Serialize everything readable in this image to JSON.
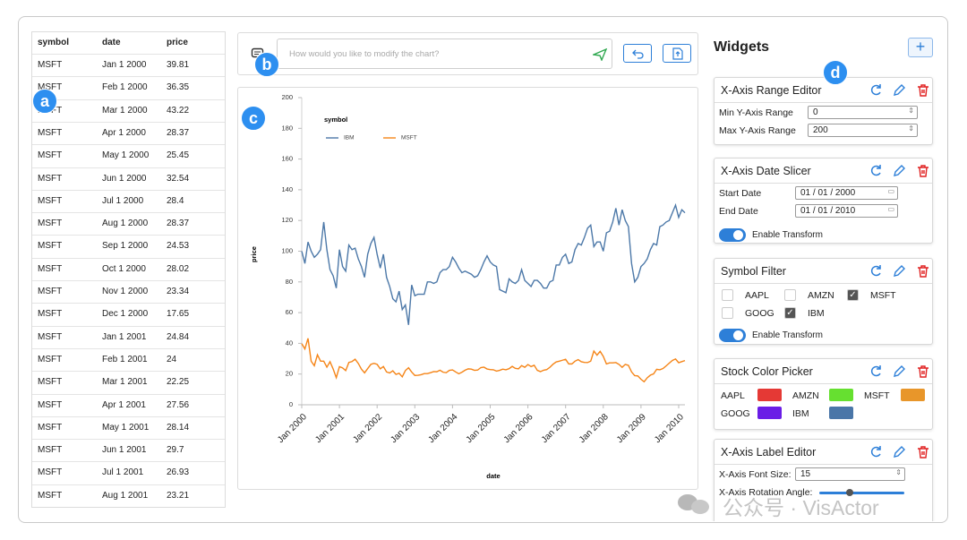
{
  "table": {
    "headers": [
      "symbol",
      "date",
      "price"
    ],
    "rows": [
      [
        "MSFT",
        "Jan 1 2000",
        "39.81"
      ],
      [
        "MSFT",
        "Feb 1 2000",
        "36.35"
      ],
      [
        "MSFT",
        "Mar 1 2000",
        "43.22"
      ],
      [
        "MSFT",
        "Apr 1 2000",
        "28.37"
      ],
      [
        "MSFT",
        "May 1 2000",
        "25.45"
      ],
      [
        "MSFT",
        "Jun 1 2000",
        "32.54"
      ],
      [
        "MSFT",
        "Jul 1 2000",
        "28.4"
      ],
      [
        "MSFT",
        "Aug 1 2000",
        "28.37"
      ],
      [
        "MSFT",
        "Sep 1 2000",
        "24.53"
      ],
      [
        "MSFT",
        "Oct 1 2000",
        "28.02"
      ],
      [
        "MSFT",
        "Nov 1 2000",
        "23.34"
      ],
      [
        "MSFT",
        "Dec 1 2000",
        "17.65"
      ],
      [
        "MSFT",
        "Jan 1 2001",
        "24.84"
      ],
      [
        "MSFT",
        "Feb 1 2001",
        "24"
      ],
      [
        "MSFT",
        "Mar 1 2001",
        "22.25"
      ],
      [
        "MSFT",
        "Apr 1 2001",
        "27.56"
      ],
      [
        "MSFT",
        "May 1 2001",
        "28.14"
      ],
      [
        "MSFT",
        "Jun 1 2001",
        "29.7"
      ],
      [
        "MSFT",
        "Jul 1 2001",
        "26.93"
      ],
      [
        "MSFT",
        "Aug 1 2001",
        "23.21"
      ]
    ]
  },
  "prompt": {
    "placeholder": "How would you like to modify the chart?"
  },
  "badges": [
    "a",
    "b",
    "c",
    "d"
  ],
  "chart_data": {
    "type": "line",
    "x_label": "date",
    "y_label": "price",
    "legend_title": "symbol",
    "grid": false,
    "x": [
      "2000-01",
      "2000-02",
      "2000-03",
      "2000-04",
      "2000-05",
      "2000-06",
      "2000-07",
      "2000-08",
      "2000-09",
      "2000-10",
      "2000-11",
      "2000-12",
      "2001-01",
      "2001-02",
      "2001-03",
      "2001-04",
      "2001-05",
      "2001-06",
      "2001-07",
      "2001-08",
      "2001-09",
      "2001-10",
      "2001-11",
      "2001-12",
      "2002-01",
      "2002-02",
      "2002-03",
      "2002-04",
      "2002-05",
      "2002-06",
      "2002-07",
      "2002-08",
      "2002-09",
      "2002-10",
      "2002-11",
      "2002-12",
      "2003-01",
      "2003-02",
      "2003-03",
      "2003-04",
      "2003-05",
      "2003-06",
      "2003-07",
      "2003-08",
      "2003-09",
      "2003-10",
      "2003-11",
      "2003-12",
      "2004-01",
      "2004-02",
      "2004-03",
      "2004-04",
      "2004-05",
      "2004-06",
      "2004-07",
      "2004-08",
      "2004-09",
      "2004-10",
      "2004-11",
      "2004-12",
      "2005-01",
      "2005-02",
      "2005-03",
      "2005-04",
      "2005-05",
      "2005-06",
      "2005-07",
      "2005-08",
      "2005-09",
      "2005-10",
      "2005-11",
      "2005-12",
      "2006-01",
      "2006-02",
      "2006-03",
      "2006-04",
      "2006-05",
      "2006-06",
      "2006-07",
      "2006-08",
      "2006-09",
      "2006-10",
      "2006-11",
      "2006-12",
      "2007-01",
      "2007-02",
      "2007-03",
      "2007-04",
      "2007-05",
      "2007-06",
      "2007-07",
      "2007-08",
      "2007-09",
      "2007-10",
      "2007-11",
      "2007-12",
      "2008-01",
      "2008-02",
      "2008-03",
      "2008-04",
      "2008-05",
      "2008-06",
      "2008-07",
      "2008-08",
      "2008-09",
      "2008-10",
      "2008-11",
      "2008-12",
      "2009-01",
      "2009-02",
      "2009-03",
      "2009-04",
      "2009-05",
      "2009-06",
      "2009-07",
      "2009-08",
      "2009-09",
      "2009-10",
      "2009-11",
      "2009-12",
      "2010-01",
      "2010-02",
      "2010-03"
    ],
    "xlim": [
      "2000-01",
      "2010-03"
    ],
    "xticks": [
      {
        "value": "2000-01",
        "label": "Jan 2000"
      },
      {
        "value": "2001-01",
        "label": "Jan 2001"
      },
      {
        "value": "2002-01",
        "label": "Jan 2002"
      },
      {
        "value": "2003-01",
        "label": "Jan 2003"
      },
      {
        "value": "2004-01",
        "label": "Jan 2004"
      },
      {
        "value": "2005-01",
        "label": "Jan 2005"
      },
      {
        "value": "2006-01",
        "label": "Jan 2006"
      },
      {
        "value": "2007-01",
        "label": "Jan 2007"
      },
      {
        "value": "2008-01",
        "label": "Jan 2008"
      },
      {
        "value": "2009-01",
        "label": "Jan 2009"
      },
      {
        "value": "2010-01",
        "label": "Jan 2010"
      }
    ],
    "ylim": [
      0,
      200
    ],
    "yticks": [
      0,
      20,
      40,
      60,
      80,
      100,
      120,
      140,
      160,
      180,
      200
    ],
    "series": [
      {
        "name": "IBM",
        "color": "#4c78a8",
        "values": [
          100,
          92,
          106,
          100,
          96,
          98,
          101,
          119,
          101,
          88,
          84,
          76,
          101,
          90,
          87,
          104,
          101,
          102,
          95,
          90,
          83,
          98,
          105,
          109,
          98,
          89,
          98,
          83,
          77,
          69,
          67,
          74,
          62,
          65,
          52,
          78,
          71,
          72,
          72,
          72,
          80,
          80,
          79,
          80,
          86,
          88,
          88,
          90,
          96,
          93,
          89,
          86,
          87,
          86,
          85,
          83,
          84,
          88,
          93,
          97,
          93,
          91,
          90,
          75,
          74,
          73,
          82,
          80,
          79,
          81,
          88,
          81,
          79,
          77,
          81,
          81,
          79,
          76,
          76,
          80,
          81,
          91,
          91,
          96,
          98,
          92,
          93,
          101,
          105,
          104,
          109,
          115,
          117,
          103,
          106,
          106,
          100,
          112,
          113,
          119,
          128,
          117,
          127,
          120,
          116,
          92,
          80,
          83,
          90,
          92,
          95,
          101,
          105,
          104,
          116,
          117,
          119,
          120,
          125,
          130,
          122,
          127,
          125
        ]
      },
      {
        "name": "MSFT",
        "color": "#f58518",
        "values": [
          39.81,
          36.35,
          43.22,
          28.37,
          25.45,
          32.54,
          28.4,
          28.37,
          24.53,
          28.02,
          23.34,
          17.65,
          24.84,
          24,
          22.25,
          27.56,
          28.14,
          29.7,
          26.93,
          23.21,
          20.8,
          23.6,
          26.3,
          27,
          26.3,
          23.4,
          24.9,
          21.4,
          20.7,
          22.1,
          19.8,
          20.5,
          18.2,
          22.3,
          24.1,
          21.3,
          19.1,
          19.2,
          19.6,
          20.3,
          20.3,
          20.9,
          21.6,
          21.5,
          22.5,
          21.2,
          20.9,
          22.4,
          22.7,
          21.4,
          20.2,
          21.2,
          22.5,
          23.4,
          23.2,
          22.4,
          22.6,
          24.2,
          24.5,
          23.3,
          22.9,
          22.8,
          21.9,
          22.4,
          23.2,
          22.8,
          23.5,
          25,
          23.7,
          23.4,
          25.5,
          24.4,
          26.2,
          24.9,
          25.7,
          22.4,
          21.6,
          22.5,
          22.9,
          24.4,
          26.4,
          27.9,
          28.4,
          29,
          29.6,
          26.6,
          26.6,
          28.4,
          29.4,
          28,
          27.6,
          27.5,
          28.4,
          35,
          32.3,
          34.8,
          31.5,
          26.6,
          27.3,
          27.3,
          27.5,
          26.3,
          24.4,
          26.3,
          25.7,
          21.4,
          19,
          18.8,
          16.6,
          15,
          17.6,
          19.3,
          20.1,
          23.1,
          22.8,
          23.6,
          25.3,
          27.1,
          28.9,
          29.8,
          27.4,
          28.1,
          28.8
        ]
      }
    ]
  },
  "widgets": {
    "title": "Widgets",
    "cards": [
      {
        "title": "X-Axis Range Editor",
        "fields": [
          {
            "label": "Min Y-Axis Range",
            "value": "0"
          },
          {
            "label": "Max Y-Axis Range",
            "value": "200"
          }
        ]
      },
      {
        "title": "X-Axis Date Slicer",
        "fields": [
          {
            "label": "Start Date",
            "value": "01 / 01 / 2000"
          },
          {
            "label": "End Date",
            "value": "01 / 01 / 2010"
          }
        ],
        "toggle": {
          "label": "Enable Transform",
          "on": true
        }
      },
      {
        "title": "Symbol Filter",
        "options": [
          {
            "label": "AAPL",
            "checked": false
          },
          {
            "label": "AMZN",
            "checked": false
          },
          {
            "label": "MSFT",
            "checked": true
          },
          {
            "label": "GOOG",
            "checked": false
          },
          {
            "label": "IBM",
            "checked": true
          }
        ],
        "toggle": {
          "label": "Enable Transform",
          "on": true
        }
      },
      {
        "title": "Stock Color Picker",
        "colors": [
          {
            "label": "AAPL",
            "color": "#e53935"
          },
          {
            "label": "AMZN",
            "color": "#66e030"
          },
          {
            "label": "MSFT",
            "color": "#e8962a"
          },
          {
            "label": "GOOG",
            "color": "#6a1de6"
          },
          {
            "label": "IBM",
            "color": "#4a76a8"
          }
        ]
      },
      {
        "title": "X-Axis Label Editor",
        "fields": [
          {
            "label": "X-Axis Font Size:",
            "value": "15"
          },
          {
            "label": "X-Axis Rotation Angle:"
          }
        ]
      }
    ]
  },
  "watermark": "公众号 · VisActor"
}
